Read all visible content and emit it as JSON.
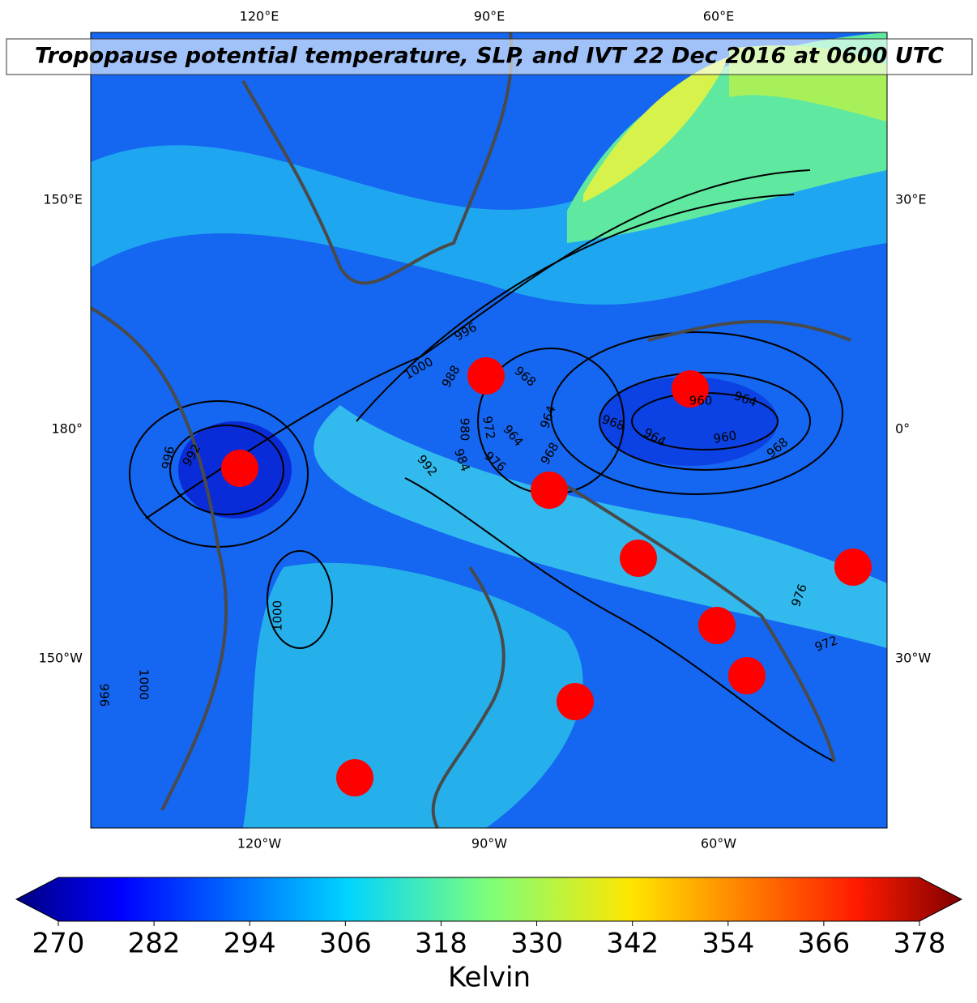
{
  "title": "Tropopause potential temperature, SLP, and IVT 22 Dec 2016 at 0600 UTC",
  "map": {
    "top_labels": [
      "120°E",
      "90°E",
      "60°E"
    ],
    "left_labels": [
      "150°E",
      "180°",
      "150°W"
    ],
    "right_labels": [
      "30°E",
      "0°",
      "30°W"
    ],
    "bottom_labels": [
      "120°W",
      "90°W",
      "60°W"
    ],
    "contour_labels": [
      1000,
      996,
      988,
      980,
      972,
      964,
      964,
      968,
      968,
      960,
      964,
      968,
      964,
      960,
      968,
      976,
      984,
      992,
      996,
      992,
      1000,
      1000,
      996,
      976,
      972
    ]
  },
  "colorbar": {
    "label": "Kelvin",
    "lim": [
      270,
      378
    ],
    "ticks": [
      270,
      282,
      294,
      306,
      318,
      330,
      342,
      354,
      366,
      378
    ]
  }
}
